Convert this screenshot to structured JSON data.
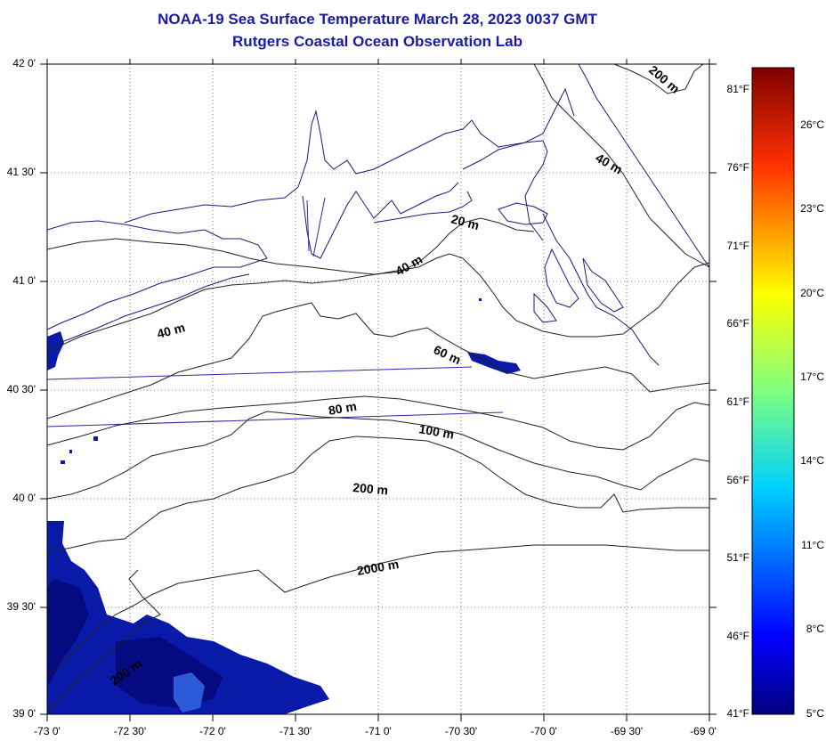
{
  "title": {
    "line1": "NOAA-19 Sea Surface Temperature March 28, 2023 0037 GMT",
    "line2": "Rutgers Coastal Ocean Observation Lab"
  },
  "axes": {
    "lat_labels": [
      "42 0'",
      "41 30'",
      "41 0'",
      "40 30'",
      "40 0'",
      "39 30'",
      "39 0'"
    ],
    "lon_labels": [
      "-73 0'",
      "-72 30'",
      "-72 0'",
      "-71 30'",
      "-71 0'",
      "-70 30'",
      "-70 0'",
      "-69 30'",
      "-69 0'"
    ]
  },
  "contours": {
    "labels": [
      "200 m",
      "40 m",
      "20 m",
      "40 m",
      "40 m",
      "60 m",
      "80 m",
      "100 m",
      "200 m",
      "2000 m",
      "200 m"
    ]
  },
  "colorbar": {
    "fahrenheit": [
      "81°F",
      "76°F",
      "71°F",
      "66°F",
      "61°F",
      "56°F",
      "51°F",
      "46°F",
      "41°F"
    ],
    "celsius": [
      "26°C",
      "23°C",
      "20°C",
      "17°C",
      "14°C",
      "11°C",
      "8°C",
      "5°C"
    ]
  },
  "colors": {
    "title": "#1a1aa6",
    "coast": "#1a1a80",
    "track": "#2a2ab0",
    "sst_cold": "#0a1aa8",
    "sst_cold_dark": "#050a80"
  }
}
